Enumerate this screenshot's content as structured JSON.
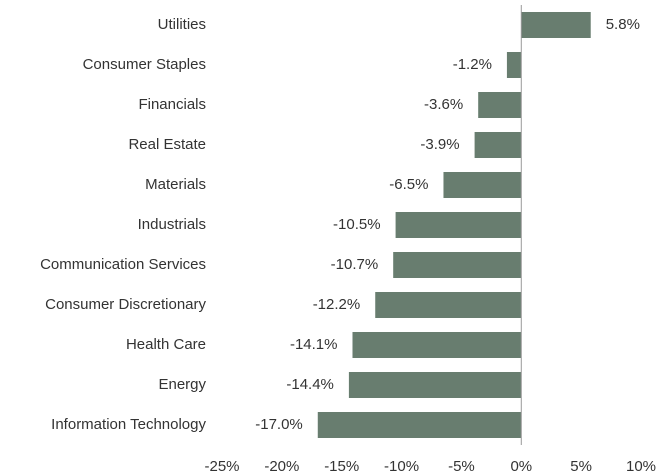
{
  "chart_data": {
    "type": "barh",
    "categories": [
      "Utilities",
      "Consumer Staples",
      "Financials",
      "Real Estate",
      "Materials",
      "Industrials",
      "Communication Services",
      "Consumer Discretionary",
      "Health Care",
      "Energy",
      "Information Technology"
    ],
    "values": [
      5.8,
      -1.2,
      -3.6,
      -3.9,
      -6.5,
      -10.5,
      -10.7,
      -12.2,
      -14.1,
      -14.4,
      -17.0
    ],
    "value_labels": [
      "5.8%",
      "-1.2%",
      "-3.6%",
      "-3.9%",
      "-6.5%",
      "-10.5%",
      "-10.7%",
      "-12.2%",
      "-14.1%",
      "-14.4%",
      "-17.0%"
    ],
    "color": "#687d6f",
    "xlim": [
      -25,
      10
    ],
    "xticks": [
      {
        "value": -25,
        "label": "-25%"
      },
      {
        "value": -20,
        "label": "-20%"
      },
      {
        "value": -15,
        "label": "-15%"
      },
      {
        "value": -10,
        "label": "-10%"
      },
      {
        "value": -5,
        "label": "-5%"
      },
      {
        "value": 0,
        "label": "0%"
      },
      {
        "value": 5,
        "label": "5%"
      },
      {
        "value": 10,
        "label": "10%"
      }
    ],
    "grid": false
  }
}
